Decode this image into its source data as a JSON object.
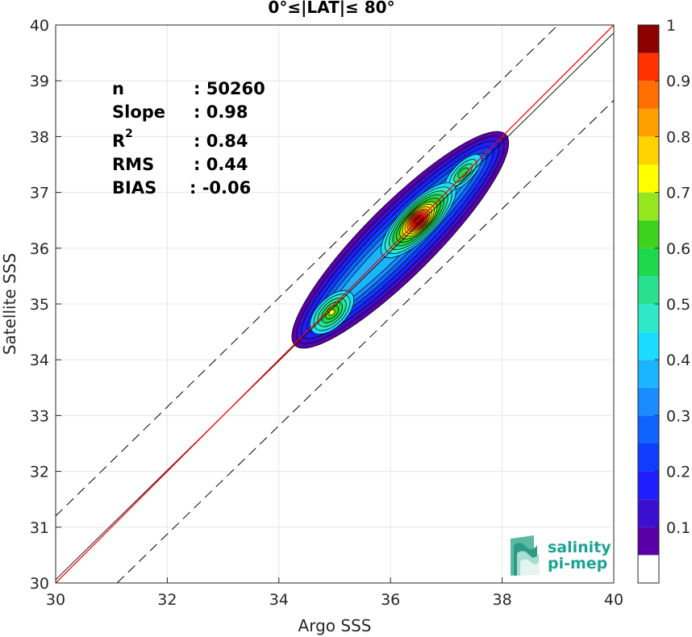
{
  "chart_data": {
    "type": "heatmap",
    "title": "0°≤|LAT|≤ 80°",
    "xlabel": "Argo SSS",
    "ylabel": "Satellite SSS",
    "xlim": [
      30,
      40
    ],
    "ylim": [
      30,
      40
    ],
    "x_ticks": [
      "30",
      "32",
      "34",
      "36",
      "38",
      "40"
    ],
    "y_ticks": [
      "30",
      "31",
      "32",
      "33",
      "34",
      "35",
      "36",
      "37",
      "38",
      "39",
      "40"
    ],
    "grid": true,
    "stats": {
      "n_label": "n",
      "n_value": ": 50260",
      "slope_label": "Slope",
      "slope_value": ": 0.98",
      "r2_label": "R",
      "r2_sup": "2",
      "r2_value": ": 0.84",
      "rms_label": "RMS",
      "rms_value": ": 0.44",
      "bias_label": "BIAS",
      "bias_value": ": -0.06"
    },
    "lines": {
      "identity": {
        "x": [
          30,
          40
        ],
        "y": [
          30,
          40
        ],
        "color": "#ff0000"
      },
      "regression": {
        "x": [
          30,
          40
        ],
        "y": [
          30.06,
          39.86
        ],
        "color": "#000000"
      },
      "bounds_upper": {
        "x": [
          30,
          39.0
        ],
        "y": [
          31.2,
          40
        ],
        "color": "#000000",
        "style": "dashed"
      },
      "bounds_lower": {
        "x": [
          31.1,
          40
        ],
        "y": [
          30,
          38.65
        ],
        "color": "#000000",
        "style": "dashed"
      }
    },
    "density_peaks": [
      {
        "name": "main",
        "x": 36.5,
        "y": 36.5,
        "max": 1.0
      },
      {
        "name": "low",
        "x": 34.95,
        "y": 34.85,
        "max": 0.65
      },
      {
        "name": "high",
        "x": 37.3,
        "y": 37.35,
        "max": 0.5
      }
    ],
    "colorbar": {
      "ticks": [
        "0.1",
        "0.2",
        "0.3",
        "0.4",
        "0.5",
        "0.6",
        "0.7",
        "0.8",
        "0.9",
        "1"
      ],
      "range": [
        0,
        1
      ],
      "levels": [
        0.05,
        0.1,
        0.15,
        0.2,
        0.25,
        0.3,
        0.35,
        0.4,
        0.45,
        0.5,
        0.55,
        0.6,
        0.65,
        0.7,
        0.75,
        0.8,
        0.85,
        0.9,
        0.95
      ],
      "colors": [
        "#ffffff",
        "#5a00a8",
        "#3a0fcf",
        "#1e1eff",
        "#0f3cff",
        "#0f64ff",
        "#1a8cff",
        "#1ab4ff",
        "#19dcff",
        "#2ee8c8",
        "#28e090",
        "#1ed84c",
        "#3cd21e",
        "#96e61e",
        "#ffff00",
        "#ffd200",
        "#ffa000",
        "#ff6e00",
        "#ff3200",
        "#e60000",
        "#8c0000"
      ]
    }
  },
  "logo": {
    "line1": "salinity",
    "line2": "pi-mep"
  }
}
